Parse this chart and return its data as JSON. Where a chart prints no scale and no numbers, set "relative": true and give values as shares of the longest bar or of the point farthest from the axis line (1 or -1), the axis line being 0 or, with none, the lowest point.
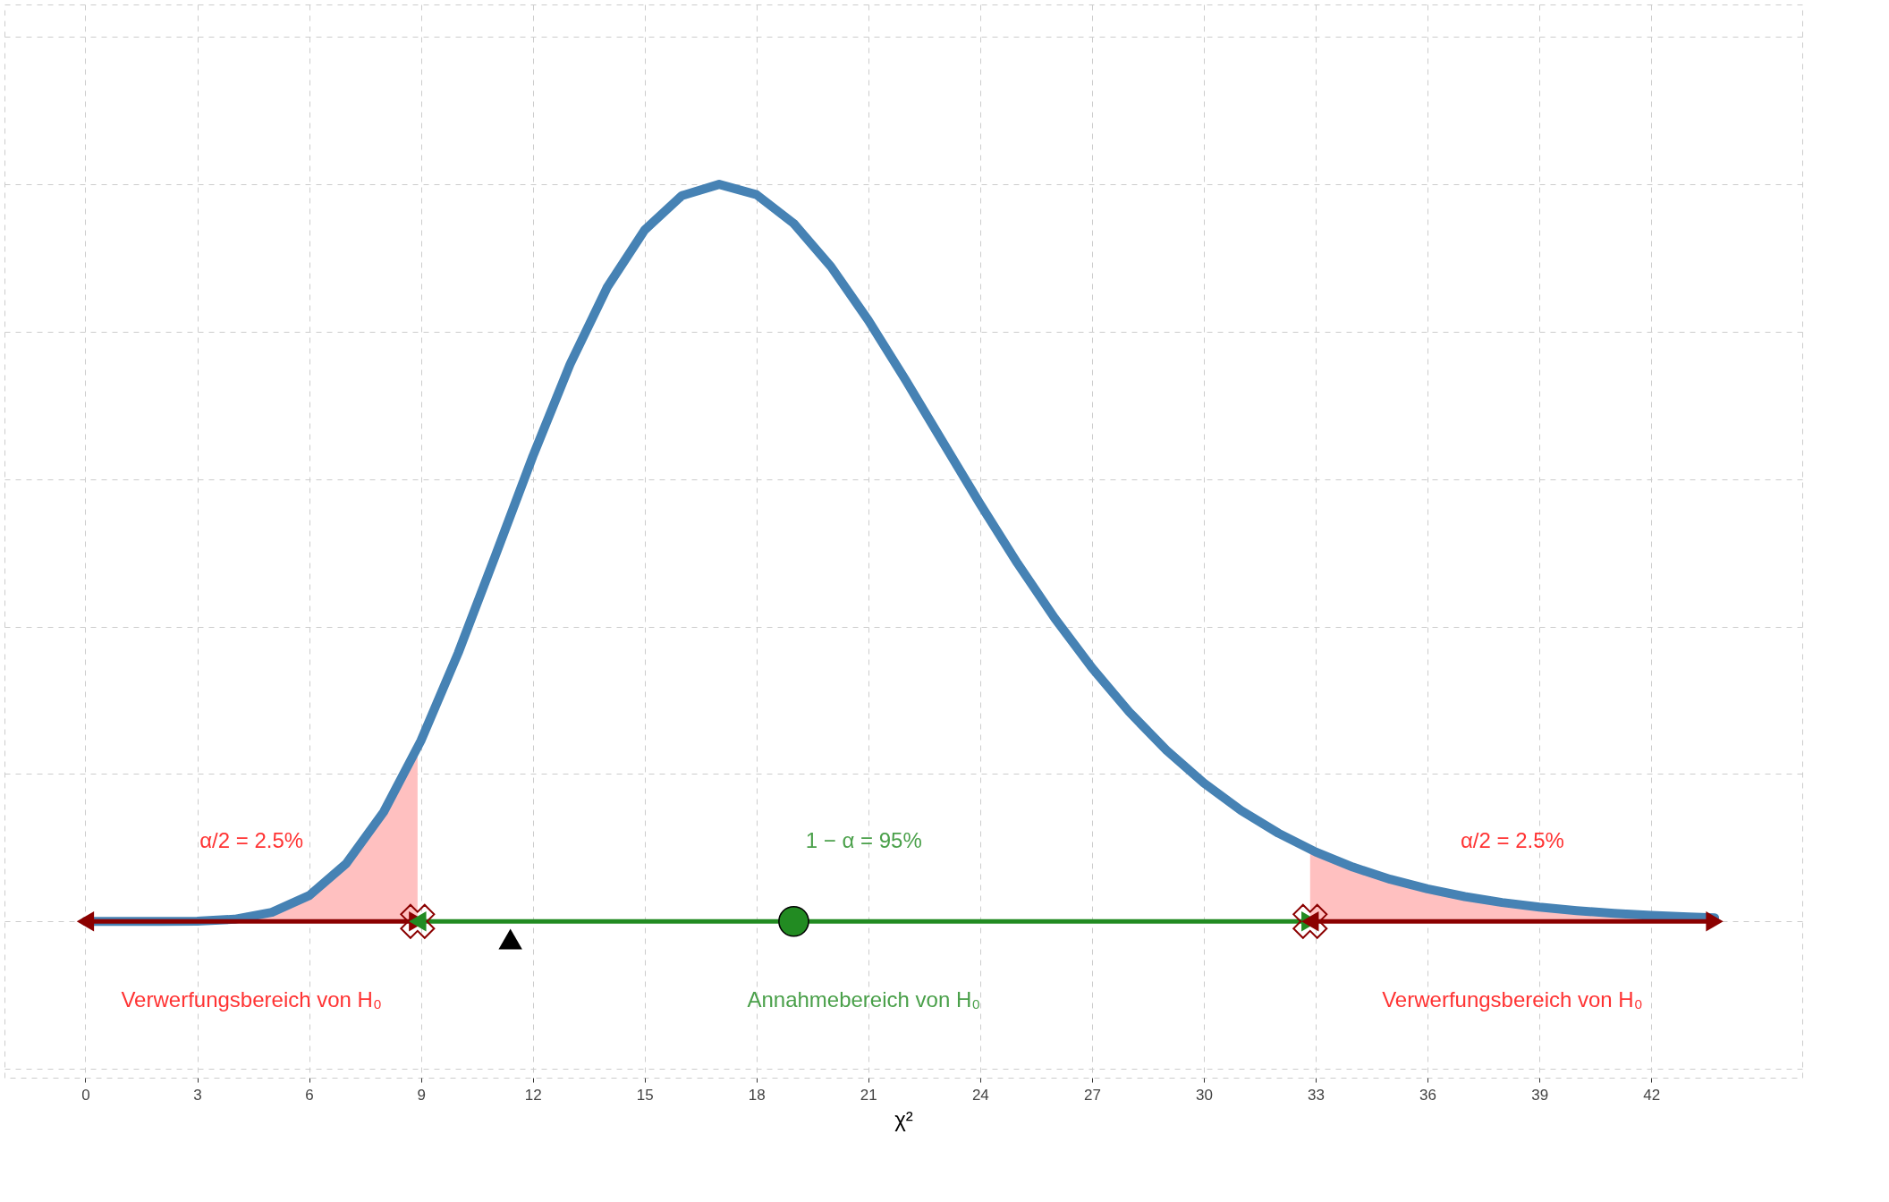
{
  "chart_data": {
    "type": "line",
    "relative": true,
    "xlabel": "χ²",
    "xlim": [
      -2.17,
      46.05
    ],
    "xticks": [
      0,
      3,
      6,
      9,
      12,
      15,
      18,
      21,
      24,
      27,
      30,
      33,
      36,
      39,
      42
    ],
    "grid": true,
    "tick_labels": "x",
    "series": [
      {
        "type": "area",
        "color": "#ffc0c0",
        "x": [
          3,
          4,
          5,
          6,
          7,
          8,
          8.91
        ],
        "values": [
          0.0004,
          0.003,
          0.0123,
          0.035,
          0.0787,
          0.1485,
          0.2355
        ]
      },
      {
        "type": "area",
        "color": "#ffc0c0",
        "x": [
          32.85,
          33,
          34,
          35,
          36,
          37,
          38,
          39,
          40,
          41,
          42,
          43,
          43.7
        ],
        "values": [
          0.0977,
          0.0942,
          0.0737,
          0.0571,
          0.0441,
          0.0337,
          0.0257,
          0.0194,
          0.0146,
          0.0109,
          0.0081,
          0.006,
          0.0049
        ]
      },
      {
        "color": "#4682b4",
        "x": [
          0,
          1,
          2,
          3,
          4,
          5,
          6,
          7,
          8,
          9,
          10,
          11,
          12,
          13,
          14,
          15,
          16,
          17,
          18,
          19,
          20,
          21,
          22,
          23,
          24,
          25,
          26,
          27,
          28,
          29,
          30,
          31,
          32,
          33,
          34,
          35,
          36,
          37,
          38,
          39,
          40,
          41,
          42,
          43,
          43.7
        ],
        "values": [
          0,
          0,
          0,
          0.0004,
          0.003,
          0.0123,
          0.035,
          0.0787,
          0.1485,
          0.2451,
          0.3642,
          0.4966,
          0.6308,
          0.7558,
          0.8606,
          0.938,
          0.9846,
          1,
          0.986,
          0.9469,
          0.8882,
          0.8155,
          0.7345,
          0.6502,
          0.5662,
          0.4859,
          0.4114,
          0.3439,
          0.2841,
          0.2322,
          0.1879,
          0.1506,
          0.1197,
          0.0942,
          0.0737,
          0.0571,
          0.0441,
          0.0337,
          0.0257,
          0.0194,
          0.0146,
          0.0109,
          0.0081,
          0.006,
          0.0049
        ]
      },
      {
        "type": "line",
        "marker": "triangle",
        "color": "#8b0000",
        "x": [
          0,
          8.91
        ],
        "values": [
          0,
          0
        ]
      },
      {
        "type": "line",
        "marker": "triangle",
        "color": "#228b22",
        "x": [
          8.91,
          32.85
        ],
        "values": [
          0,
          0
        ]
      },
      {
        "type": "line",
        "marker": "triangle",
        "color": "#8b0000",
        "x": [
          32.85,
          43.7
        ],
        "values": [
          0,
          0
        ]
      },
      {
        "type": "scatter",
        "marker": "cross",
        "color": "#8b0000",
        "x": [
          8.91,
          32.85
        ],
        "values": [
          0,
          0
        ]
      },
      {
        "type": "scatter",
        "marker": "circle",
        "color": "#228b22",
        "x": [
          19
        ],
        "values": [
          0
        ]
      },
      {
        "type": "scatter",
        "marker": "triangle",
        "color": "#000000",
        "x": [
          11.4
        ],
        "values": [
          -0.024
        ]
      }
    ],
    "annotations": [
      "α/2 = 2.5%",
      "1 − α = 95%",
      "α/2 = 2.5%",
      "Verwerfungsbereich von H₀",
      "Annahmebereich von H₀",
      "Verwerfungsbereich von H₀"
    ]
  }
}
